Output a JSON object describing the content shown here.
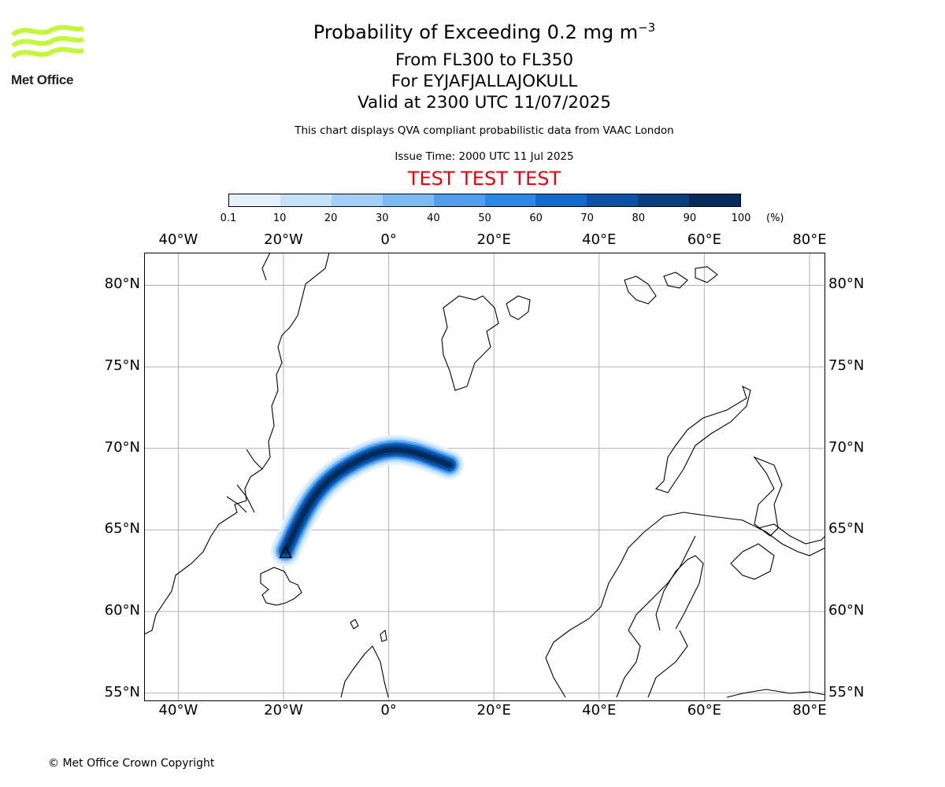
{
  "header": {
    "title_prefix": "Probability of Exceeding 0.2 mg m",
    "title_exponent": "−3",
    "flight_levels": "From FL300 to FL350",
    "volcano": "For EYJAFJALLAJOKULL",
    "valid_time": "Valid at 2300 UTC 11/07/2025",
    "qva_note": "This chart displays QVA compliant probabilistic data from VAAC London",
    "issue_time": "Issue Time: 2000 UTC 11 Jul 2025",
    "banner": "TEST TEST TEST"
  },
  "logo": {
    "text": "Met Office",
    "color": "#c3f73a"
  },
  "colorbar": {
    "ticks": [
      "0.1",
      "10",
      "20",
      "30",
      "40",
      "50",
      "60",
      "70",
      "80",
      "90",
      "100"
    ],
    "unit": "(%)",
    "colors": [
      "#e3f1fd",
      "#c4e1fa",
      "#a2cff6",
      "#7bbaf2",
      "#4ea0ee",
      "#2b88e6",
      "#1469cc",
      "#0a52a8",
      "#073f82",
      "#052b5a"
    ]
  },
  "map": {
    "lon_labels": [
      "40°W",
      "20°W",
      "0°",
      "20°E",
      "40°E",
      "60°E",
      "80°E"
    ],
    "lon_values": [
      -40,
      -20,
      0,
      20,
      40,
      60,
      80
    ],
    "lat_labels": [
      "80°N",
      "75°N",
      "70°N",
      "65°N",
      "60°N",
      "55°N"
    ],
    "lat_values": [
      80,
      75,
      70,
      65,
      60,
      55
    ],
    "lon_range": [
      -46.5,
      83
    ],
    "lat_range": [
      54.5,
      82
    ],
    "grid_color": "#b0b0b0",
    "source_volcano": {
      "lat": 63.6,
      "lon": -19.6
    },
    "plume_axis": [
      {
        "lon": -19.6,
        "lat": 63.7,
        "prob": 85
      },
      {
        "lon": -16.5,
        "lat": 66.0,
        "prob": 90
      },
      {
        "lon": -12.0,
        "lat": 68.0,
        "prob": 92
      },
      {
        "lon": -6.0,
        "lat": 69.3,
        "prob": 95
      },
      {
        "lon": 0.0,
        "lat": 70.0,
        "prob": 95
      },
      {
        "lon": 5.0,
        "lat": 69.8,
        "prob": 95
      },
      {
        "lon": 9.0,
        "lat": 69.3,
        "prob": 95
      },
      {
        "lon": 11.5,
        "lat": 69.0,
        "prob": 80
      }
    ]
  },
  "footer": {
    "copyright": "© Met Office Crown Copyright"
  }
}
